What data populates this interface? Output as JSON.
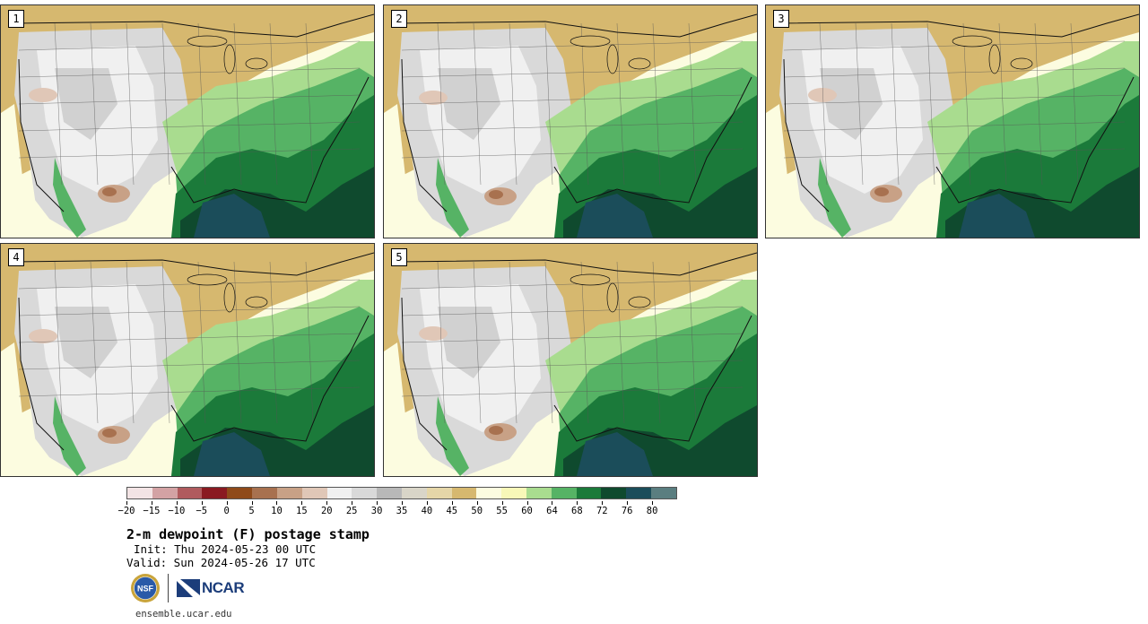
{
  "panels": [
    {
      "label": "1",
      "variant": 0
    },
    {
      "label": "2",
      "variant": 1
    },
    {
      "label": "3",
      "variant": 2
    },
    {
      "label": "4",
      "variant": 3
    },
    {
      "label": "5",
      "variant": 4
    }
  ],
  "colorbar": {
    "colors": [
      "#f3e4e5",
      "#d3a2a4",
      "#b05b5e",
      "#8a1a21",
      "#8f4a1a",
      "#a8714f",
      "#c8a186",
      "#e0c7b7",
      "#f0f0f0",
      "#d9d9d9",
      "#b8b8b8",
      "#d9d5c8",
      "#e5d6a8",
      "#d6b86f",
      "#fcfce0",
      "#f8f8b8",
      "#a9dc8f",
      "#56b365",
      "#1b7a3a",
      "#0f4a2e",
      "#1b4d5a",
      "#5a7e80"
    ],
    "tick_labels": [
      "−20",
      "−15",
      "−10",
      "−5",
      "0",
      "5",
      "10",
      "15",
      "20",
      "25",
      "30",
      "35",
      "40",
      "45",
      "50",
      "55",
      "60",
      "64",
      "68",
      "72",
      "76",
      "80"
    ]
  },
  "title": "2-m dewpoint (F) postage stamp",
  "init": "Init: Thu 2024-05-23 00 UTC",
  "valid": "Valid: Sun 2024-05-26 17 UTC",
  "logos": {
    "nsf": "NSF",
    "ncar": "NCAR"
  },
  "site": "ensemble.ucar.edu"
}
